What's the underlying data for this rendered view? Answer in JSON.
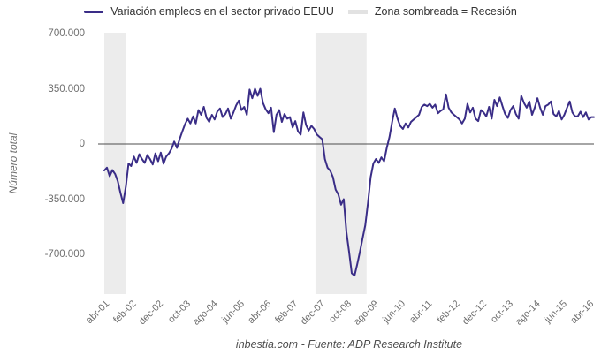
{
  "legend": {
    "series_label": "Variación empleos en el sector privado EEUU",
    "recession_label": "Zona sombreada = Recesión"
  },
  "axes": {
    "y_title": "Número total",
    "y_ticks": [
      {
        "label": "700.000",
        "value": 700000
      },
      {
        "label": "350.000",
        "value": 350000
      },
      {
        "label": "0",
        "value": 0
      },
      {
        "label": "-350.000",
        "value": -350000
      },
      {
        "label": "-700.000",
        "value": -700000
      }
    ],
    "x_ticks": [
      {
        "label": "abr-01",
        "month_index": 0
      },
      {
        "label": "feb-02",
        "month_index": 10
      },
      {
        "label": "dec-02",
        "month_index": 20
      },
      {
        "label": "oct-03",
        "month_index": 30
      },
      {
        "label": "ago-04",
        "month_index": 40
      },
      {
        "label": "jun-05",
        "month_index": 50
      },
      {
        "label": "abr-06",
        "month_index": 60
      },
      {
        "label": "feb-07",
        "month_index": 70
      },
      {
        "label": "dec-07",
        "month_index": 80
      },
      {
        "label": "oct-08",
        "month_index": 90
      },
      {
        "label": "ago-09",
        "month_index": 100
      },
      {
        "label": "jun-10",
        "month_index": 110
      },
      {
        "label": "abr-11",
        "month_index": 120
      },
      {
        "label": "feb-12",
        "month_index": 130
      },
      {
        "label": "dec-12",
        "month_index": 140
      },
      {
        "label": "oct-13",
        "month_index": 150
      },
      {
        "label": "ago-14",
        "month_index": 160
      },
      {
        "label": "jun-15",
        "month_index": 170
      },
      {
        "label": "abr-16",
        "month_index": 180
      }
    ]
  },
  "footer": {
    "text": "inbestia.com - Fuente: ADP Research Institute"
  },
  "colors": {
    "line": "#3a2d87",
    "recession_band": "#ececec",
    "legend_band_swatch": "#e2e2e2",
    "zero_line": "#4d4d4d",
    "tick_text": "#6f6f6f",
    "legend_text": "#333333",
    "footer_text": "#4d4d4d"
  },
  "chart_data": {
    "type": "line",
    "title": "",
    "xlabel": "",
    "ylabel": "Número total",
    "ylim": [
      -950000,
      715000
    ],
    "grid": false,
    "legend_position": "top-center",
    "x_tick_labels": [
      "abr-01",
      "feb-02",
      "dec-02",
      "oct-03",
      "ago-04",
      "jun-05",
      "abr-06",
      "feb-07",
      "dec-07",
      "oct-08",
      "ago-09",
      "jun-10",
      "abr-11",
      "feb-12",
      "dec-12",
      "oct-13",
      "ago-14",
      "jun-15",
      "abr-16"
    ],
    "frequency": "monthly",
    "x_start": "abr-01",
    "x_end": "jun-16",
    "recessions": [
      {
        "from": "abr-01",
        "to": "dec-01",
        "from_index": 0,
        "to_index": 8
      },
      {
        "from": "dec-07",
        "to": "jun-09",
        "from_index": 78.5,
        "to_index": 97.5
      }
    ],
    "series": [
      {
        "name": "Variación empleos en el sector privado EEUU",
        "values": [
          -168000,
          -150000,
          -205000,
          -165000,
          -190000,
          -235000,
          -310000,
          -375000,
          -270000,
          -123000,
          -140000,
          -80000,
          -120000,
          -65000,
          -95000,
          -120000,
          -70000,
          -95000,
          -130000,
          -60000,
          -110000,
          -55000,
          -125000,
          -80000,
          -60000,
          -30000,
          15000,
          -25000,
          30000,
          80000,
          125000,
          160000,
          130000,
          175000,
          130000,
          215000,
          185000,
          235000,
          165000,
          140000,
          185000,
          155000,
          205000,
          225000,
          170000,
          190000,
          225000,
          160000,
          200000,
          245000,
          275000,
          215000,
          235000,
          185000,
          345000,
          290000,
          350000,
          305000,
          350000,
          260000,
          220000,
          195000,
          230000,
          75000,
          185000,
          215000,
          140000,
          190000,
          160000,
          170000,
          105000,
          145000,
          80000,
          60000,
          200000,
          120000,
          85000,
          115000,
          95000,
          60000,
          45000,
          30000,
          -95000,
          -150000,
          -170000,
          -210000,
          -290000,
          -320000,
          -385000,
          -350000,
          -560000,
          -685000,
          -820000,
          -835000,
          -765000,
          -685000,
          -600000,
          -515000,
          -375000,
          -210000,
          -125000,
          -95000,
          -120000,
          -85000,
          -110000,
          -25000,
          45000,
          140000,
          225000,
          160000,
          115000,
          95000,
          130000,
          105000,
          140000,
          155000,
          170000,
          185000,
          235000,
          250000,
          240000,
          255000,
          230000,
          250000,
          195000,
          210000,
          220000,
          315000,
          230000,
          200000,
          185000,
          170000,
          155000,
          130000,
          160000,
          255000,
          200000,
          230000,
          160000,
          145000,
          215000,
          200000,
          175000,
          235000,
          160000,
          280000,
          240000,
          295000,
          240000,
          190000,
          165000,
          215000,
          240000,
          190000,
          160000,
          305000,
          260000,
          230000,
          270000,
          185000,
          230000,
          290000,
          230000,
          185000,
          240000,
          250000,
          270000,
          190000,
          175000,
          210000,
          155000,
          185000,
          230000,
          270000,
          200000,
          175000,
          175000,
          205000,
          170000,
          200000,
          155000,
          170000,
          170000
        ]
      }
    ],
    "source": "inbestia.com - Fuente: ADP Research Institute"
  }
}
